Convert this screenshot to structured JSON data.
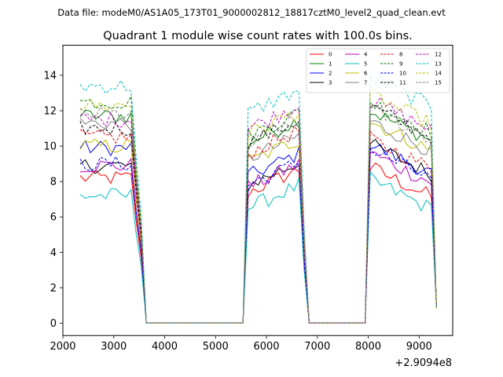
{
  "header": {
    "data_file": "Data file: modeM0/AS1A05_173T01_9000002812_18817cztM0_level2_quad_clean.evt"
  },
  "chart_data": {
    "type": "line",
    "title": "Quadrant 1 module wise count rates with 100.0s bins.",
    "xlabel": "",
    "ylabel": "",
    "x_offset_label": "+2.9094e8",
    "xlim": [
      2000,
      9660
    ],
    "ylim": [
      -0.7,
      15.7
    ],
    "xticks": [
      2000,
      3000,
      4000,
      5000,
      6000,
      7000,
      8000,
      9000
    ],
    "yticks": [
      0,
      2,
      4,
      6,
      8,
      10,
      12,
      14
    ],
    "legend_position": "top-right",
    "segments": [
      {
        "start": 2340,
        "end": 3540,
        "drop_to": 3640
      },
      {
        "start": 5640,
        "end": 6740,
        "drop_to": 6840
      },
      {
        "start": 8040,
        "end": 9340,
        "drop_to": null
      }
    ],
    "series": [
      {
        "name": "0",
        "color": "#ff0000",
        "dash": "solid",
        "levels": [
          8.2,
          7.6,
          7.6
        ]
      },
      {
        "name": "1",
        "color": "#008000",
        "dash": "solid",
        "levels": [
          11.7,
          10.4,
          10.8
        ]
      },
      {
        "name": "2",
        "color": "#0000ff",
        "dash": "solid",
        "levels": [
          9.9,
          8.5,
          8.9
        ]
      },
      {
        "name": "3",
        "color": "#000000",
        "dash": "solid",
        "levels": [
          8.9,
          8.0,
          8.9
        ]
      },
      {
        "name": "4",
        "color": "#bf00bf",
        "dash": "solid",
        "levels": [
          8.9,
          7.9,
          8.4
        ]
      },
      {
        "name": "5",
        "color": "#00bfbf",
        "dash": "solid",
        "levels": [
          7.2,
          6.7,
          6.9
        ]
      },
      {
        "name": "6",
        "color": "#bfbf00",
        "dash": "solid",
        "levels": [
          10.0,
          9.3,
          10.2
        ]
      },
      {
        "name": "7",
        "color": "#808080",
        "dash": "solid",
        "levels": [
          11.3,
          9.5,
          10.2
        ]
      },
      {
        "name": "8",
        "color": "#ff0000",
        "dash": "dashed",
        "levels": [
          10.5,
          9.8,
          9.2
        ]
      },
      {
        "name": "9",
        "color": "#008000",
        "dash": "dashed",
        "levels": [
          12.5,
          10.8,
          11.3
        ]
      },
      {
        "name": "10",
        "color": "#0000ff",
        "dash": "dashed",
        "levels": [
          9.0,
          8.0,
          8.6
        ]
      },
      {
        "name": "11",
        "color": "#000000",
        "dash": "dashed",
        "levels": [
          11.0,
          10.4,
          11.0
        ]
      },
      {
        "name": "12",
        "color": "#bf00bf",
        "dash": "dashed",
        "levels": [
          11.5,
          11.2,
          11.4
        ]
      },
      {
        "name": "13",
        "color": "#00bfbf",
        "dash": "dashed",
        "levels": [
          13.4,
          12.1,
          12.7
        ]
      },
      {
        "name": "14",
        "color": "#bfbf00",
        "dash": "dashed",
        "levels": [
          12.3,
          10.9,
          11.7
        ]
      },
      {
        "name": "15",
        "color": "#808080",
        "dash": "dashed",
        "levels": [
          11.8,
          10.2,
          10.9
        ]
      }
    ]
  }
}
